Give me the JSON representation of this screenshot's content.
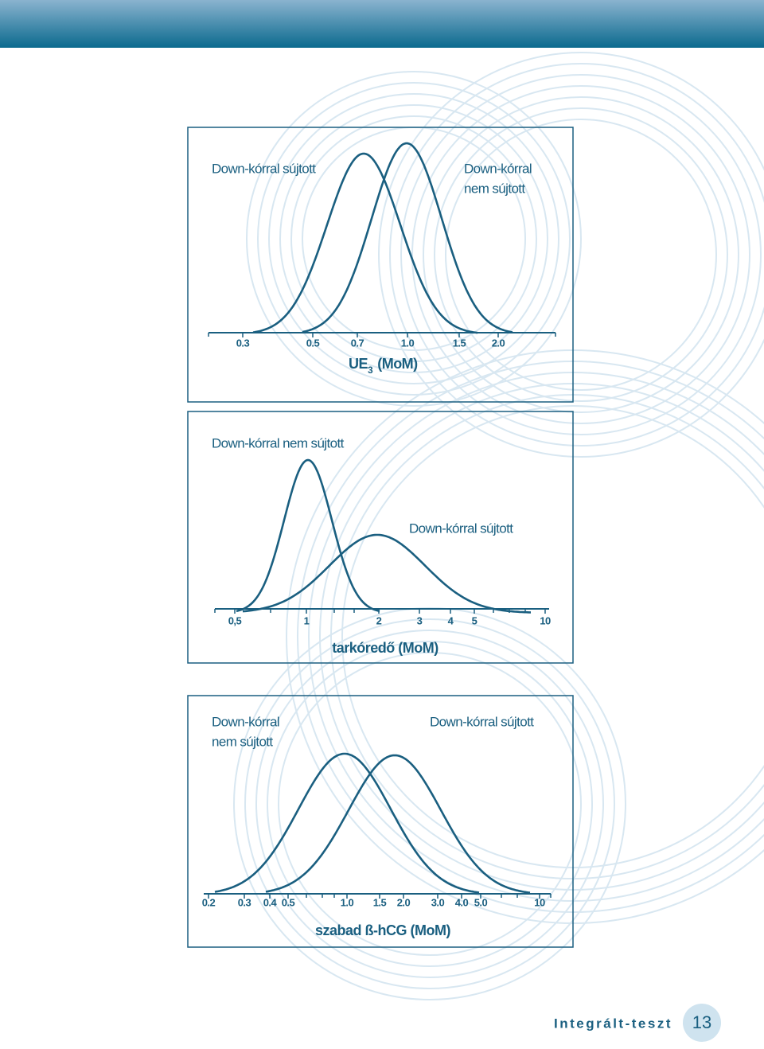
{
  "panels": [
    {
      "texts": [
        "Down-kórral sújtott",
        "Down-kórral",
        "nem sújtott"
      ],
      "ticks": [
        "0.3",
        "0.5",
        "0.7",
        "1.0",
        "1.5",
        "2.0"
      ],
      "axis_title": [
        "UE",
        "3",
        "(MoM)"
      ]
    },
    {
      "texts": [
        "Down-kórral nem sújtott",
        "Down-kórral sújtott"
      ],
      "ticks": [
        "0,5",
        "1",
        "2",
        "3",
        "4",
        "5",
        "10"
      ],
      "axis_title": [
        "tarkóredő (MoM)"
      ]
    },
    {
      "texts": [
        "Down-kórral",
        "nem sújtott",
        "Down-kórral sújtott"
      ],
      "ticks": [
        "0.2",
        "0.3",
        "0.4",
        "0.5",
        "1.0",
        "1.5",
        "2.0",
        "3.0",
        "4.0",
        "5.0",
        "10"
      ],
      "axis_title": [
        "szabad ß-hCG (MoM)"
      ]
    }
  ],
  "footer": {
    "title": "Integrált-teszt",
    "page": "13"
  }
}
